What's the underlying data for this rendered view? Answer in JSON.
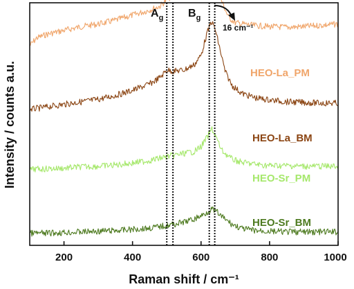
{
  "chart_data": {
    "type": "line",
    "xlabel": "Raman shift / cm⁻¹",
    "ylabel": "Intensity / counts a.u.",
    "xlim": [
      100,
      1000
    ],
    "x_ticks": [
      200,
      400,
      600,
      800,
      1000
    ],
    "y_ticks_shown": false,
    "grid": false,
    "legend": "inline labels, right side",
    "series": [
      {
        "name": "HEO-La_PM",
        "color": "#f0a56a",
        "offset": 3.0,
        "points": [
          [
            100,
            0.0
          ],
          [
            120,
            0.12
          ],
          [
            150,
            0.18
          ],
          [
            200,
            0.24
          ],
          [
            250,
            0.3
          ],
          [
            300,
            0.34
          ],
          [
            350,
            0.4
          ],
          [
            400,
            0.48
          ],
          [
            450,
            0.56
          ],
          [
            480,
            0.62
          ],
          [
            500,
            0.72
          ],
          [
            520,
            0.8
          ],
          [
            550,
            0.86
          ],
          [
            580,
            0.98
          ],
          [
            600,
            1.25
          ],
          [
            615,
            1.42
          ],
          [
            630,
            1.36
          ],
          [
            645,
            1.05
          ],
          [
            660,
            0.7
          ],
          [
            680,
            0.45
          ],
          [
            700,
            0.36
          ],
          [
            750,
            0.32
          ],
          [
            800,
            0.3
          ],
          [
            850,
            0.29
          ],
          [
            900,
            0.3
          ],
          [
            950,
            0.32
          ],
          [
            1000,
            0.34
          ]
        ]
      },
      {
        "name": "HEO-La_BM",
        "color": "#8b4513",
        "offset": 2.0,
        "points": [
          [
            100,
            0.0
          ],
          [
            150,
            0.04
          ],
          [
            200,
            0.08
          ],
          [
            250,
            0.12
          ],
          [
            300,
            0.16
          ],
          [
            350,
            0.22
          ],
          [
            400,
            0.3
          ],
          [
            450,
            0.4
          ],
          [
            480,
            0.5
          ],
          [
            500,
            0.62
          ],
          [
            520,
            0.6
          ],
          [
            550,
            0.62
          ],
          [
            580,
            0.7
          ],
          [
            600,
            0.85
          ],
          [
            615,
            1.15
          ],
          [
            630,
            1.38
          ],
          [
            640,
            1.28
          ],
          [
            655,
            0.95
          ],
          [
            670,
            0.6
          ],
          [
            690,
            0.38
          ],
          [
            720,
            0.25
          ],
          [
            760,
            0.18
          ],
          [
            800,
            0.15
          ],
          [
            850,
            0.12
          ],
          [
            900,
            0.11
          ],
          [
            950,
            0.1
          ],
          [
            1000,
            0.1
          ]
        ]
      },
      {
        "name": "HEO-Sr_PM",
        "color": "#a6e86c",
        "offset": 1.0,
        "points": [
          [
            100,
            0.06
          ],
          [
            150,
            0.07
          ],
          [
            200,
            0.08
          ],
          [
            250,
            0.1
          ],
          [
            300,
            0.11
          ],
          [
            350,
            0.13
          ],
          [
            400,
            0.16
          ],
          [
            450,
            0.2
          ],
          [
            500,
            0.26
          ],
          [
            540,
            0.3
          ],
          [
            580,
            0.34
          ],
          [
            600,
            0.42
          ],
          [
            620,
            0.58
          ],
          [
            632,
            0.7
          ],
          [
            645,
            0.55
          ],
          [
            660,
            0.36
          ],
          [
            690,
            0.22
          ],
          [
            720,
            0.17
          ],
          [
            760,
            0.14
          ],
          [
            800,
            0.12
          ],
          [
            850,
            0.12
          ],
          [
            900,
            0.11
          ],
          [
            950,
            0.11
          ],
          [
            1000,
            0.11
          ]
        ]
      },
      {
        "name": "HEO-Sr_BM",
        "color": "#4d7a1f",
        "offset": 0.0,
        "points": [
          [
            100,
            0.06
          ],
          [
            150,
            0.06
          ],
          [
            200,
            0.07
          ],
          [
            250,
            0.08
          ],
          [
            300,
            0.09
          ],
          [
            350,
            0.1
          ],
          [
            400,
            0.12
          ],
          [
            450,
            0.14
          ],
          [
            500,
            0.18
          ],
          [
            540,
            0.22
          ],
          [
            580,
            0.28
          ],
          [
            610,
            0.36
          ],
          [
            630,
            0.44
          ],
          [
            645,
            0.4
          ],
          [
            660,
            0.32
          ],
          [
            690,
            0.2
          ],
          [
            720,
            0.13
          ],
          [
            760,
            0.1
          ],
          [
            800,
            0.09
          ],
          [
            850,
            0.08
          ],
          [
            900,
            0.08
          ],
          [
            950,
            0.08
          ],
          [
            1000,
            0.08
          ]
        ]
      }
    ],
    "reference_lines": [
      {
        "x": 500,
        "style": "dotted"
      },
      {
        "x": 518,
        "style": "dotted"
      },
      {
        "x": 624,
        "style": "dotted"
      },
      {
        "x": 640,
        "style": "dotted"
      }
    ],
    "annotations": [
      {
        "text": "A",
        "subscript": "g",
        "x": 505
      },
      {
        "text": "B",
        "subscript": "g",
        "x": 610
      },
      {
        "text": "16 cm⁻¹",
        "x": 660
      }
    ]
  },
  "labels": {
    "series_la_pm": "HEO-La_PM",
    "series_la_bm": "HEO-La_BM",
    "series_sr_pm": "HEO-Sr_PM",
    "series_sr_bm": "HEO-Sr_BM",
    "ag_main": "A",
    "ag_sub": "g",
    "bg_main": "B",
    "bg_sub": "g",
    "shift": "16 cm⁻¹"
  }
}
